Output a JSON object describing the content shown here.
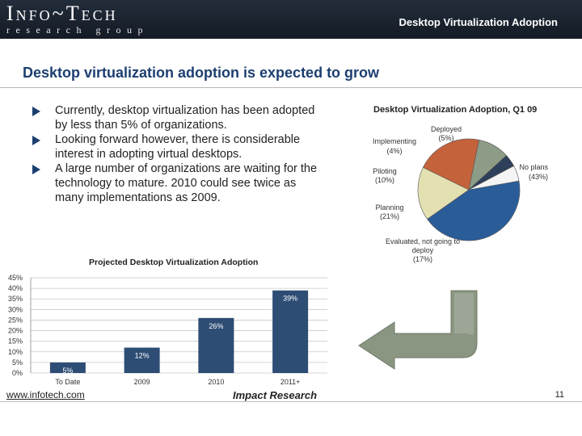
{
  "header": {
    "logo_main": "Info~Tech",
    "logo_sub": "research group",
    "title": "Desktop Virtualization Adoption"
  },
  "slide_title": "Desktop virtualization adoption is expected to grow",
  "bullets": [
    "Currently, desktop virtualization has been adopted by less than 5% of organizations.",
    "Looking forward however, there is considerable interest in adopting virtual desktops.",
    "A large number of organizations are waiting for the technology to mature. 2010 could see twice as many implementations as 2009."
  ],
  "footer": {
    "url": "www.infotech.com",
    "impact": "Impact Research",
    "page": "11"
  },
  "colors": {
    "navy": "#1c3f70",
    "bar": "#2e4d75",
    "arrow": "#8a9582"
  },
  "arrow_icon": "curved-arrow-left-icon",
  "chart_data": [
    {
      "type": "pie",
      "title": "Desktop Virtualization Adoption, Q1 09",
      "slices": [
        {
          "label": "No plans",
          "value": 43,
          "value_label": "(43%)",
          "color": "#2a5d98"
        },
        {
          "label": "Evaluated, not going to deploy",
          "value": 17,
          "value_label": "(17%)",
          "color": "#e3e0b2"
        },
        {
          "label": "Planning",
          "value": 21,
          "value_label": "(21%)",
          "color": "#c4623c"
        },
        {
          "label": "Piloting",
          "value": 10,
          "value_label": "(10%)",
          "color": "#8d9c86"
        },
        {
          "label": "Implementing",
          "value": 4,
          "value_label": "(4%)",
          "color": "#2d3f5a"
        },
        {
          "label": "Deployed",
          "value": 5,
          "value_label": "(5%)",
          "color": "#f4f4f4"
        }
      ]
    },
    {
      "type": "bar",
      "title": "Projected Desktop Virtualization Adoption",
      "categories": [
        "To Date",
        "2009",
        "2010",
        "2011+"
      ],
      "values": [
        5,
        12,
        26,
        39
      ],
      "value_labels": [
        "5%",
        "12%",
        "26%",
        "39%"
      ],
      "ylim": [
        0,
        45
      ],
      "yticks": [
        "0%",
        "5%",
        "10%",
        "15%",
        "20%",
        "25%",
        "30%",
        "35%",
        "40%",
        "45%"
      ],
      "grid": true
    }
  ]
}
